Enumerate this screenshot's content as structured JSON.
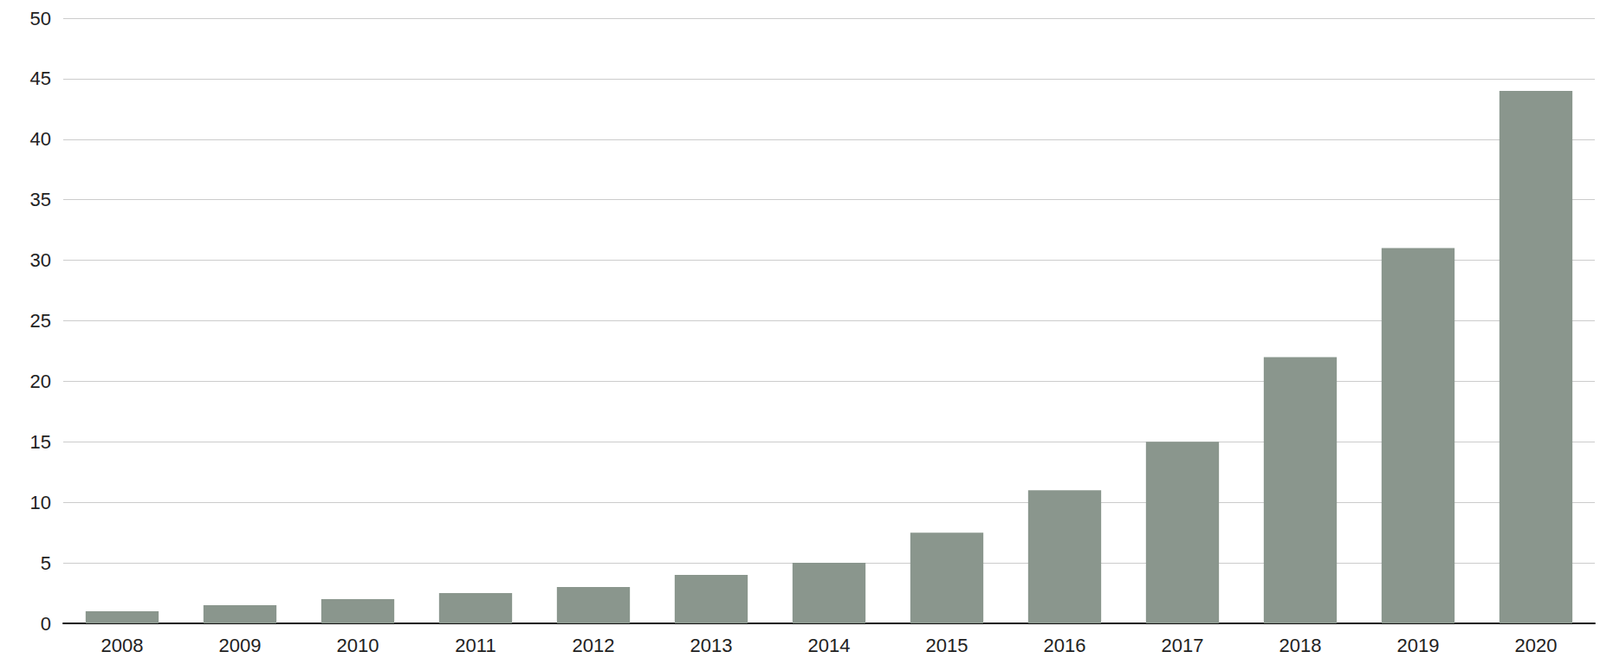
{
  "chart_data": {
    "type": "bar",
    "categories": [
      "2008",
      "2009",
      "2010",
      "2011",
      "2012",
      "2013",
      "2014",
      "2015",
      "2016",
      "2017",
      "2018",
      "2019",
      "2020"
    ],
    "values": [
      1,
      1.5,
      2,
      2.5,
      3,
      4,
      5,
      7.5,
      11,
      15,
      22,
      31,
      44
    ],
    "color": "#8a968d",
    "ylim": [
      0,
      50
    ],
    "yticks": [
      0,
      5,
      10,
      15,
      20,
      25,
      30,
      35,
      40,
      45,
      50
    ],
    "grid": true
  }
}
